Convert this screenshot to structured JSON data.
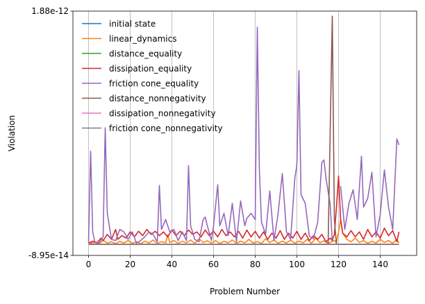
{
  "chart_data": {
    "type": "line",
    "title": "",
    "xlabel": "Problem Number",
    "ylabel": "Violation",
    "xlim": [
      -7.5,
      157.5
    ],
    "ylim": [
      -8.95e-14,
      1.88e-12
    ],
    "xticks": [
      0,
      20,
      40,
      60,
      80,
      100,
      120,
      140
    ],
    "xtick_labels": [
      "0",
      "20",
      "40",
      "60",
      "80",
      "100",
      "120",
      "140"
    ],
    "yticks": [
      -8.95e-14,
      1.88e-12
    ],
    "ytick_labels": [
      "-8.95e-14",
      "1.88e-12"
    ],
    "grid": "vertical at x ticks",
    "legend_position": "top-left",
    "series": [
      {
        "name": "initial state",
        "color": "#1f77b4",
        "segments": [
          [
            [
              0,
              0
            ],
            [
              149,
              0
            ]
          ]
        ]
      },
      {
        "name": "linear_dynamics",
        "color": "#ff7f0e",
        "segments": [
          [
            [
              0,
              6e-15
            ],
            [
              3,
              1.5e-14
            ],
            [
              5,
              4e-15
            ],
            [
              7,
              3.2e-14
            ],
            [
              9,
              1e-14
            ],
            [
              11,
              2e-14
            ],
            [
              13,
              5e-15
            ],
            [
              15,
              2.4e-14
            ],
            [
              17,
              1e-14
            ],
            [
              19,
              3e-14
            ],
            [
              21,
              8e-15
            ],
            [
              23,
              2e-14
            ],
            [
              25,
              4e-15
            ],
            [
              27,
              2.6e-14
            ],
            [
              29,
              1e-14
            ],
            [
              31,
              3.5e-14
            ],
            [
              33,
              6e-15
            ],
            [
              35,
              2.2e-14
            ],
            [
              37,
              1.2e-14
            ],
            [
              38,
              7.5e-14
            ],
            [
              39,
              1.5e-14
            ],
            [
              41,
              3e-14
            ],
            [
              43,
              8e-15
            ],
            [
              45,
              2.5e-14
            ],
            [
              47,
              1.2e-14
            ],
            [
              49,
              3.5e-14
            ],
            [
              51,
              6e-15
            ],
            [
              53,
              4.5e-14
            ],
            [
              55,
              1.5e-14
            ],
            [
              57,
              2.8e-14
            ],
            [
              59,
              1e-14
            ],
            [
              61,
              3e-14
            ],
            [
              63,
              5e-15
            ],
            [
              65,
              2.5e-14
            ],
            [
              67,
              1.2e-14
            ],
            [
              69,
              3.5e-14
            ],
            [
              71,
              8e-15
            ],
            [
              73,
              2.6e-14
            ],
            [
              75,
              1.2e-14
            ],
            [
              77,
              4e-14
            ],
            [
              79,
              1e-14
            ],
            [
              81,
              2.2e-14
            ],
            [
              83,
              6e-15
            ],
            [
              85,
              4.5e-14
            ],
            [
              87,
              1.4e-14
            ],
            [
              89,
              3.5e-14
            ],
            [
              91,
              8e-15
            ],
            [
              93,
              2.6e-14
            ],
            [
              95,
              1e-14
            ],
            [
              97,
              3.4e-14
            ],
            [
              99,
              8e-15
            ],
            [
              101,
              2.6e-14
            ],
            [
              103,
              1.2e-14
            ],
            [
              105,
              4e-14
            ],
            [
              107,
              8e-15
            ],
            [
              109,
              5e-14
            ],
            [
              111,
              1.4e-14
            ],
            [
              113,
              2.8e-14
            ],
            [
              115,
              6e-15
            ],
            [
              117,
              2.4e-14
            ],
            [
              118,
              3e-14
            ],
            [
              119,
              1.4e-14
            ],
            [
              120,
              1e-13
            ],
            [
              121,
              2e-13
            ],
            [
              122,
              9e-14
            ],
            [
              124,
              4e-14
            ],
            [
              126,
              2e-14
            ],
            [
              128,
              5e-14
            ],
            [
              130,
              1.5e-14
            ],
            [
              132,
              3e-14
            ],
            [
              134,
              8e-15
            ],
            [
              136,
              2.5e-14
            ],
            [
              138,
              1e-14
            ],
            [
              140,
              4e-14
            ],
            [
              142,
              1.5e-14
            ],
            [
              144,
              3e-14
            ],
            [
              146,
              8e-15
            ],
            [
              148,
              4e-14
            ],
            [
              149,
              1e-14
            ]
          ]
        ]
      },
      {
        "name": "distance_equality",
        "color": "#2ca02c",
        "segments": [
          [
            [
              0,
              0
            ],
            [
              149,
              0
            ]
          ]
        ]
      },
      {
        "name": "dissipation_equality",
        "color": "#d62728",
        "segments": [
          [
            [
              0,
              1.2e-14
            ],
            [
              2,
              2.5e-14
            ],
            [
              4,
              1.2e-14
            ],
            [
              6,
              5e-14
            ],
            [
              7,
              3e-14
            ],
            [
              9,
              8e-14
            ],
            [
              11,
              4e-14
            ],
            [
              13,
              1.2e-13
            ],
            [
              14,
              4e-14
            ],
            [
              16,
              7e-14
            ],
            [
              18,
              5e-14
            ],
            [
              20,
              1e-13
            ],
            [
              22,
              6e-14
            ],
            [
              24,
              1.05e-13
            ],
            [
              26,
              7e-14
            ],
            [
              28,
              1.2e-13
            ],
            [
              30,
              8e-14
            ],
            [
              32,
              1.05e-13
            ],
            [
              34,
              7e-14
            ],
            [
              36,
              1e-13
            ],
            [
              38,
              6e-14
            ],
            [
              40,
              1.15e-13
            ],
            [
              42,
              7e-14
            ],
            [
              44,
              1.05e-13
            ],
            [
              46,
              7e-14
            ],
            [
              48,
              1.15e-13
            ],
            [
              50,
              8e-14
            ],
            [
              52,
              1e-13
            ],
            [
              54,
              6e-14
            ],
            [
              56,
              1.15e-13
            ],
            [
              58,
              7e-14
            ],
            [
              60,
              1.05e-13
            ],
            [
              62,
              6e-14
            ],
            [
              64,
              1.2e-13
            ],
            [
              66,
              7e-14
            ],
            [
              68,
              1e-13
            ],
            [
              70,
              6e-14
            ],
            [
              72,
              1.05e-13
            ],
            [
              74,
              5e-14
            ],
            [
              76,
              1.15e-13
            ],
            [
              78,
              6e-14
            ],
            [
              80,
              1.05e-13
            ],
            [
              82,
              5e-14
            ],
            [
              84,
              1e-13
            ],
            [
              86,
              4e-14
            ],
            [
              88,
              9e-14
            ],
            [
              90,
              5e-14
            ],
            [
              92,
              1.1e-13
            ],
            [
              94,
              4e-14
            ],
            [
              96,
              9e-14
            ],
            [
              98,
              5e-14
            ],
            [
              100,
              1.05e-13
            ],
            [
              102,
              4e-14
            ],
            [
              104,
              9e-14
            ],
            [
              106,
              3e-14
            ],
            [
              108,
              7e-14
            ],
            [
              110,
              4e-14
            ],
            [
              112,
              8e-14
            ],
            [
              114,
              2e-14
            ],
            [
              116,
              5e-14
            ],
            [
              117,
              3e-14
            ],
            [
              118,
              8e-14
            ],
            [
              119,
              3e-13
            ],
            [
              120,
              5.5e-13
            ],
            [
              121,
              2e-13
            ],
            [
              122,
              9e-14
            ],
            [
              124,
              6e-14
            ],
            [
              126,
              1.1e-13
            ],
            [
              128,
              6e-14
            ],
            [
              130,
              1e-13
            ],
            [
              132,
              4e-14
            ],
            [
              134,
              1.2e-13
            ],
            [
              136,
              6e-14
            ],
            [
              138,
              1e-13
            ],
            [
              140,
              5e-14
            ],
            [
              142,
              1.3e-13
            ],
            [
              144,
              7e-14
            ],
            [
              146,
              1.1e-13
            ],
            [
              148,
              2e-14
            ],
            [
              149,
              1e-13
            ]
          ]
        ]
      },
      {
        "name": "friction cone_equality",
        "color": "#9467bd",
        "segments": [
          [
            [
              0,
              2e-14
            ],
            [
              1,
              7.5e-13
            ],
            [
              2,
              1e-13
            ],
            [
              3,
              2e-14
            ],
            [
              5,
              1e-14
            ],
            [
              7,
              6e-14
            ],
            [
              8,
              9.4e-13
            ],
            [
              9,
              2.5e-13
            ],
            [
              11,
              4e-14
            ],
            [
              13,
              3e-14
            ],
            [
              15,
              1.2e-13
            ],
            [
              17,
              1e-13
            ],
            [
              19,
              4e-14
            ],
            [
              21,
              1e-13
            ],
            [
              23,
              1e-14
            ],
            [
              25,
              3e-14
            ],
            [
              27,
              6e-14
            ],
            [
              29,
              1e-13
            ],
            [
              31,
              8e-14
            ],
            [
              33,
              2e-14
            ],
            [
              34,
              4.75e-13
            ],
            [
              35,
              1.2e-13
            ],
            [
              37,
              2e-13
            ],
            [
              39,
              1e-13
            ],
            [
              41,
              1.2e-13
            ],
            [
              43,
              3e-14
            ],
            [
              45,
              1e-13
            ],
            [
              47,
              3e-14
            ],
            [
              48,
              6.35e-13
            ],
            [
              49,
              1.5e-13
            ],
            [
              51,
              4e-14
            ],
            [
              53,
              2e-14
            ],
            [
              55,
              2e-13
            ],
            [
              56,
              2.2e-13
            ],
            [
              57,
              1.5e-13
            ],
            [
              59,
              3e-14
            ],
            [
              60,
              1.5e-13
            ],
            [
              62,
              4.8e-13
            ],
            [
              63,
              1.5e-13
            ],
            [
              65,
              2.5e-13
            ],
            [
              67,
              7e-14
            ],
            [
              69,
              3.3e-13
            ],
            [
              71,
              2e-14
            ],
            [
              73,
              3.5e-13
            ],
            [
              75,
              1.5e-13
            ],
            [
              76,
              2.1e-13
            ],
            [
              78,
              2.5e-13
            ],
            [
              80,
              2e-13
            ],
            [
              81,
              1.75e-12
            ],
            [
              82,
              6e-13
            ],
            [
              83,
              1.8e-13
            ],
            [
              85,
              8e-14
            ],
            [
              87,
              4.3e-13
            ],
            [
              89,
              3e-14
            ],
            [
              91,
              2.5e-13
            ],
            [
              93,
              5.7e-13
            ],
            [
              95,
              1e-13
            ],
            [
              97,
              4e-14
            ],
            [
              99,
              5.3e-13
            ],
            [
              100,
              6.4e-13
            ],
            [
              101,
              1.4e-12
            ],
            [
              102,
              4e-13
            ],
            [
              104,
              3.3e-13
            ],
            [
              106,
              6.5e-14
            ],
            [
              108,
              4.5e-14
            ],
            [
              110,
              1.8e-13
            ],
            [
              112,
              6.6e-13
            ],
            [
              113,
              6.8e-13
            ],
            [
              114,
              5.3e-13
            ],
            [
              116,
              3.2e-13
            ],
            [
              117,
              2e-14
            ]
          ],
          [
            [
              121,
              4.7e-13
            ],
            [
              123,
              1.2e-13
            ],
            [
              125,
              3.3e-13
            ],
            [
              127,
              4.4e-13
            ],
            [
              129,
              2e-13
            ],
            [
              131,
              7.1e-13
            ],
            [
              132,
              3e-13
            ],
            [
              134,
              3.7e-13
            ],
            [
              136,
              5.8e-13
            ],
            [
              138,
              6e-14
            ],
            [
              140,
              2.4e-13
            ],
            [
              142,
              6e-13
            ],
            [
              144,
              3e-13
            ],
            [
              146,
              1.2e-13
            ],
            [
              148,
              8.5e-13
            ],
            [
              149,
              8e-13
            ]
          ]
        ]
      },
      {
        "name": "distance_nonnegativity",
        "color": "#8c564b",
        "segments": [
          [
            [
              0,
              0
            ],
            [
              115,
              0
            ],
            [
              117,
              1.84e-12
            ],
            [
              118,
              2e-13
            ],
            [
              119,
              0
            ],
            [
              149,
              0
            ]
          ]
        ]
      },
      {
        "name": "dissipation_nonnegativity",
        "color": "#e377c2",
        "segments": [
          [
            [
              0,
              0
            ],
            [
              149,
              0
            ]
          ]
        ]
      },
      {
        "name": "friction cone_nonnegativity",
        "color": "#7f7f7f",
        "segments": [
          [
            [
              0,
              0
            ],
            [
              149,
              0
            ]
          ]
        ]
      }
    ]
  }
}
